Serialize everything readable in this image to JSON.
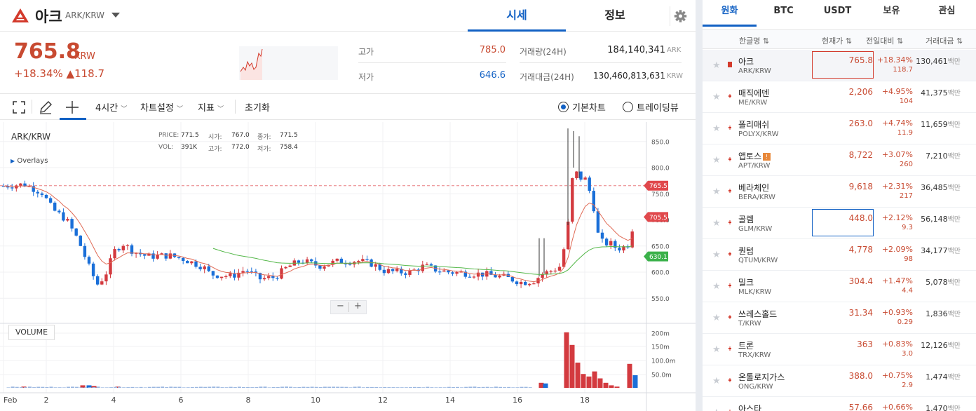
{
  "header": {
    "coin_name": "아크",
    "coin_pair": "ARK/KRW",
    "tabs": [
      "시세",
      "정보"
    ]
  },
  "price": {
    "value": "765.8",
    "unit": "KRW",
    "change": "+18.34% ▲118.7",
    "high_label": "고가",
    "high": "785.0",
    "low_label": "저가",
    "low": "646.6",
    "vol_label": "거래량(24H)",
    "vol": "184,140,341",
    "vol_unit": "ARK",
    "amt_label": "거래대금(24H)",
    "amt": "130,460,813,631",
    "amt_unit": "KRW"
  },
  "toolbar": {
    "interval": "4시간",
    "chart_settings": "차트설정",
    "indicators": "지표",
    "reset": "초기화",
    "basic_chart": "기본차트",
    "trading_view": "트레이딩뷰"
  },
  "chart_info": {
    "symbol": "ARK/KRW",
    "overlays": "Overlays",
    "price_label": "PRICE:",
    "price": "771.5",
    "open_label": "시가:",
    "open": "767.0",
    "close_label": "종가:",
    "close": "771.5",
    "vol_label": "VOL:",
    "vol": "391K",
    "high_label": "고가:",
    "high": "772.0",
    "low_label": "저가:",
    "low": "758.4",
    "volume_label": "VOLUME",
    "zoom_out": "−",
    "zoom_in": "+"
  },
  "chart_data": {
    "type": "candlestick",
    "y_ticks": [
      "850.0",
      "800.0",
      "750.0",
      "700.0",
      "650.0",
      "600.0",
      "550.0"
    ],
    "vol_ticks": [
      "200m",
      "150m",
      "100.0m",
      "50.0m"
    ],
    "x_ticks": [
      "Feb",
      "2",
      "4",
      "6",
      "8",
      "10",
      "12",
      "14",
      "16",
      "18"
    ],
    "price_tags": [
      {
        "value": "765.5",
        "color": "#e0484c"
      },
      {
        "value": "705.5",
        "color": "#e0484c"
      },
      {
        "value": "630.1",
        "color": "#3bb14a"
      }
    ]
  },
  "sidebar": {
    "tabs": [
      "원화",
      "BTC",
      "USDT",
      "보유",
      "관심"
    ],
    "headers": [
      "한글명 ⇅",
      "현재가 ⇅",
      "전일대비 ⇅",
      "거래대금 ⇅"
    ],
    "vol_unit": "백만",
    "rows": [
      {
        "name": "아크",
        "pair": "ARK/KRW",
        "price": "765.8",
        "pct": "+18.34%",
        "chg": "118.7",
        "vol": "130,461"
      },
      {
        "name": "매직에덴",
        "pair": "ME/KRW",
        "price": "2,206",
        "pct": "+4.95%",
        "chg": "104",
        "vol": "41,375"
      },
      {
        "name": "폴리매쉬",
        "pair": "POLYX/KRW",
        "price": "263.0",
        "pct": "+4.74%",
        "chg": "11.9",
        "vol": "11,659"
      },
      {
        "name": "앱토스",
        "pair": "APT/KRW",
        "price": "8,722",
        "pct": "+3.07%",
        "chg": "260",
        "vol": "7,210"
      },
      {
        "name": "베라체인",
        "pair": "BERA/KRW",
        "price": "9,618",
        "pct": "+2.31%",
        "chg": "217",
        "vol": "36,485"
      },
      {
        "name": "골렘",
        "pair": "GLM/KRW",
        "price": "448.0",
        "pct": "+2.12%",
        "chg": "9.3",
        "vol": "56,148"
      },
      {
        "name": "퀀텀",
        "pair": "QTUM/KRW",
        "price": "4,778",
        "pct": "+2.09%",
        "chg": "98",
        "vol": "34,177"
      },
      {
        "name": "밀크",
        "pair": "MLK/KRW",
        "price": "304.4",
        "pct": "+1.47%",
        "chg": "4.4",
        "vol": "5,078"
      },
      {
        "name": "쓰레스홀드",
        "pair": "T/KRW",
        "price": "31.34",
        "pct": "+0.93%",
        "chg": "0.29",
        "vol": "1,836"
      },
      {
        "name": "트론",
        "pair": "TRX/KRW",
        "price": "363",
        "pct": "+0.83%",
        "chg": "3.0",
        "vol": "12,126"
      },
      {
        "name": "온톨로지가스",
        "pair": "ONG/KRW",
        "price": "388.0",
        "pct": "+0.75%",
        "chg": "2.9",
        "vol": "1,474"
      },
      {
        "name": "아스타",
        "pair": "",
        "price": "57.66",
        "pct": "+0.66%",
        "chg": "",
        "vol": "1,470"
      }
    ]
  }
}
